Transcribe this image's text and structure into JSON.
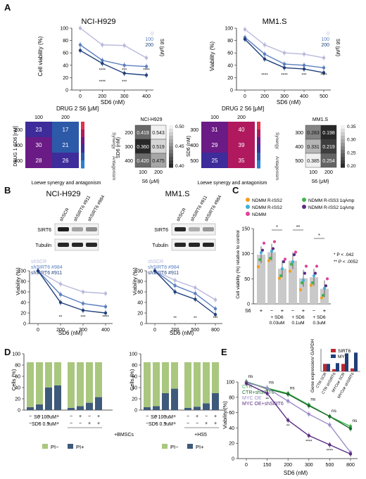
{
  "panels": {
    "A": {
      "letter": "A",
      "lines": [
        {
          "title": "NCI-H929",
          "xlabel": "SD6 (nM)",
          "ylabel": "Cell viability (%)",
          "xticks": [
            "0",
            "200",
            "300",
            "400"
          ],
          "legend_title": "S6 (μM)",
          "legend": [
            "0",
            "100",
            "200"
          ]
        },
        {
          "title": "MM1.S",
          "xlabel": "SD6 (nM)",
          "ylabel": "Viability (%)",
          "xticks": [
            "0",
            "200",
            "300",
            "400",
            "500"
          ],
          "legend_title": "S6 (μM)",
          "legend": [
            "0",
            "100",
            "200"
          ]
        }
      ],
      "synergy": [
        {
          "top_label": "DRUG 2 S6 [μM]",
          "top_ticks": [
            "100",
            "200"
          ],
          "left_label": "DRUG 1 SD6 [nM]",
          "left_ticks": [
            "200",
            "300",
            "400"
          ],
          "side_label": "Synergy",
          "side_label2": "Antagonism",
          "bottom_label": "Loewe synergy and antagonism",
          "cells": [
            [
              "23",
              "17"
            ],
            [
              "30",
              "21"
            ],
            [
              "28",
              "26"
            ]
          ]
        },
        {
          "top_label": "DRUG 2 S6 [μM]",
          "top_ticks": [
            "100",
            "200"
          ],
          "left_label": "SD6 (nM)",
          "left_ticks": [
            "300",
            "400",
            "500"
          ],
          "side_label": "Synergy",
          "side_label2": "Antagonism",
          "bottom_label": "Loewe synergy and antagonism",
          "cells": [
            [
              "31",
              "40"
            ],
            [
              "29",
              "39"
            ],
            [
              "25",
              "35"
            ]
          ]
        }
      ],
      "heat": [
        {
          "title": "NCI-H929",
          "xlabel": "S6 (μM)",
          "ylabel": "SD6 (nM)",
          "xticks": [
            "100",
            "200"
          ],
          "yticks": [
            "200",
            "300",
            "400"
          ],
          "cells": [
            [
              "0.419",
              "0.543"
            ],
            [
              "0.360",
              "0.519"
            ],
            [
              "0.420",
              "0.475"
            ]
          ],
          "cbar": [
            "0.50",
            "0.45",
            "0.40"
          ]
        },
        {
          "title": "MM1.S",
          "xlabel": "S6 (μM)",
          "ylabel": "",
          "xticks": [
            "100",
            "200"
          ],
          "yticks": [
            "300",
            "400",
            "500"
          ],
          "cells": [
            [
              "0.283",
              "0.198"
            ],
            [
              "0.331",
              "0.219"
            ],
            [
              "0.385",
              "0.254"
            ]
          ],
          "cbar": [
            "0.35",
            "0.30",
            "0.25",
            "0.20"
          ]
        }
      ]
    },
    "B": {
      "letter": "B",
      "titles": [
        "NCI-H929",
        "MM1.S"
      ],
      "lanes": [
        "shSCR",
        "shSIRT6 #911",
        "shSIRT6 #984"
      ],
      "rows": [
        "SIRT6",
        "Tubulin"
      ],
      "legend": [
        "shSCR",
        "shSIRT6 #984",
        "shSIRT6 #911"
      ],
      "xlabel": "SD6 (nM)",
      "ylabel": "Viability (%)",
      "xticks_left": [
        "0",
        "200",
        "300",
        "400"
      ],
      "xticks_right": [
        "0",
        "200",
        "500",
        "800"
      ]
    },
    "C": {
      "letter": "C",
      "legend": [
        "NDMM R-ISS2",
        "NDMM R-ISS3 1qAmp",
        "NDMM R-ISS2",
        "NDMM R-ISS2 1qAmp",
        "NDMM"
      ],
      "legend_colors": [
        "#f39c1f",
        "#3db54a",
        "#3fb0d9",
        "#5a2d82",
        "#e0409a"
      ],
      "ylabel": "Cell viability (%) relative to control",
      "s6_label": "S6",
      "signs": [
        "+",
        "−",
        "+",
        "−",
        "+",
        "−",
        "+"
      ],
      "groups": [
        "+ SD6 0.03uM",
        "+ SD6 0.1uM",
        "+ SD6 0.3uM"
      ],
      "pvals": [
        "* P < .042",
        "** P < .0052"
      ],
      "sig": [
        "*",
        "**",
        "*"
      ]
    },
    "D": {
      "letter": "D",
      "ylabel": "Cells (%)",
      "row_labels": [
        "S6 100uM",
        "SD6 0.5uM"
      ],
      "left_suffix": "+BMSCs",
      "right_suffix": "+HS5",
      "legend": [
        "PI−",
        "PI+"
      ],
      "colors": {
        "pi_neg": "#a9c77e",
        "pi_pos": "#3e5a7a"
      }
    },
    "E": {
      "letter": "E",
      "legend": [
        "CTR",
        "CTR+shSIRT6",
        "MYC OE",
        "MYC OE+shSIRT6"
      ],
      "legend_colors": [
        "#3db54a",
        "#1a6b2d",
        "#9d8ec9",
        "#5a2d82"
      ],
      "xlabel": "SD6 (nM)",
      "ylabel": "Viability (%)",
      "xticks": [
        "0",
        "150",
        "200",
        "300",
        "500",
        "800"
      ],
      "ns": [
        "ns",
        "ns",
        "ns",
        "ns",
        "ns",
        "ns"
      ],
      "inset": {
        "ylabel": "Gene expression/ GAPDH",
        "legend": [
          "SIRT6",
          "MYC"
        ],
        "categories": [
          "CTR SCR",
          "CTR shSIRT6",
          "MYCoe SCR",
          "MYCoe shSIRT6"
        ]
      }
    }
  },
  "chart_data": [
    {
      "type": "line",
      "title": "NCI-H929",
      "xlabel": "SD6 (nM)",
      "ylabel": "Cell viability (%)",
      "x": [
        0,
        200,
        300,
        400
      ],
      "ylim": [
        0,
        100
      ],
      "series": [
        {
          "name": "0",
          "values": [
            100,
            73,
            72,
            52
          ]
        },
        {
          "name": "100",
          "values": [
            73,
            48,
            40,
            38
          ]
        },
        {
          "name": "200",
          "values": [
            64,
            43,
            27,
            24
          ]
        }
      ]
    },
    {
      "type": "line",
      "title": "MM1.S",
      "xlabel": "SD6 (nM)",
      "ylabel": "Viability (%)",
      "x": [
        0,
        200,
        300,
        400,
        500
      ],
      "ylim": [
        0,
        100
      ],
      "series": [
        {
          "name": "0",
          "values": [
            98,
            73,
            60,
            58,
            52
          ]
        },
        {
          "name": "100",
          "values": [
            85,
            58,
            42,
            40,
            36
          ]
        },
        {
          "name": "200",
          "values": [
            82,
            50,
            36,
            34,
            28
          ]
        }
      ]
    },
    {
      "type": "line",
      "title": "NCI-H929",
      "xlabel": "SD6 (nM)",
      "ylabel": "Viability (%)",
      "x": [
        0,
        200,
        300,
        400
      ],
      "ylim": [
        0,
        100
      ],
      "series": [
        {
          "name": "shSCR",
          "values": [
            100,
            75,
            60,
            57
          ]
        },
        {
          "name": "shSIRT6 #984",
          "values": [
            100,
            55,
            38,
            32
          ]
        },
        {
          "name": "shSIRT6 #911",
          "values": [
            100,
            40,
            25,
            20
          ]
        }
      ]
    },
    {
      "type": "line",
      "title": "MM1.S",
      "xlabel": "SD6 (nM)",
      "ylabel": "Viability (%)",
      "x": [
        0,
        200,
        500,
        800
      ],
      "ylim": [
        0,
        100
      ],
      "series": [
        {
          "name": "shSCR",
          "values": [
            100,
            82,
            68,
            45
          ]
        },
        {
          "name": "shSIRT6 #984",
          "values": [
            100,
            72,
            57,
            28
          ]
        },
        {
          "name": "shSIRT6 #911",
          "values": [
            100,
            60,
            46,
            17
          ]
        }
      ]
    },
    {
      "type": "bar",
      "ylabel": "Cell viability (%) relative to control",
      "categories": [
        "S6",
        "S6−/SD6 0.03",
        "S6+/SD6 0.03",
        "S6−/SD6 0.1",
        "S6+/SD6 0.1",
        "S6−/SD6 0.3",
        "S6+/SD6 0.3"
      ],
      "values": [
        98,
        103,
        70,
        86,
        51,
        53,
        30
      ],
      "ylim": [
        0,
        150
      ]
    },
    {
      "type": "bar",
      "ylabel": "Cells (%)",
      "stacked": true,
      "categories": [
        "1",
        "2",
        "3",
        "4",
        "5",
        "6",
        "7",
        "8"
      ],
      "series": [
        {
          "name": "PI+",
          "values": [
            5,
            10,
            40,
            44,
            4,
            7,
            13,
            23
          ]
        },
        {
          "name": "PI−",
          "values": [
            80,
            75,
            45,
            41,
            81,
            78,
            72,
            62
          ]
        }
      ],
      "ylim": [
        0,
        100
      ]
    },
    {
      "type": "bar",
      "ylabel": "Cells (%)",
      "stacked": true,
      "categories": [
        "1",
        "2",
        "3",
        "4",
        "5",
        "6",
        "7",
        "8"
      ],
      "series": [
        {
          "name": "PI+",
          "values": [
            5,
            7,
            30,
            38,
            4,
            6,
            12,
            30
          ]
        },
        {
          "name": "PI−",
          "values": [
            80,
            78,
            55,
            47,
            81,
            79,
            73,
            55
          ]
        }
      ],
      "ylim": [
        0,
        100
      ]
    },
    {
      "type": "line",
      "xlabel": "SD6 (nM)",
      "ylabel": "Viability (%)",
      "x": [
        0,
        150,
        200,
        300,
        500,
        800
      ],
      "ylim": [
        0,
        100
      ],
      "series": [
        {
          "name": "CTR",
          "values": [
            100,
            92,
            85,
            70,
            55,
            42
          ]
        },
        {
          "name": "CTR+shSIRT6",
          "values": [
            100,
            91,
            84,
            69,
            55,
            39
          ]
        },
        {
          "name": "MYC OE",
          "values": [
            99,
            92,
            75,
            58,
            44,
            8
          ]
        },
        {
          "name": "MYC OE+shSIRT6",
          "values": [
            98,
            85,
            50,
            30,
            18,
            6
          ]
        }
      ]
    },
    {
      "type": "bar",
      "ylabel": "Gene expression/ GAPDH",
      "categories": [
        "CTR SCR",
        "CTR shSIRT6",
        "MYCoe SCR",
        "MYCoe shSIRT6"
      ],
      "series": [
        {
          "name": "SIRT6",
          "values": [
            1.0,
            0.3,
            1.0,
            0.4
          ]
        },
        {
          "name": "MYC",
          "values": [
            1.0,
            1.1,
            2.4,
            2.5
          ]
        }
      ]
    }
  ]
}
